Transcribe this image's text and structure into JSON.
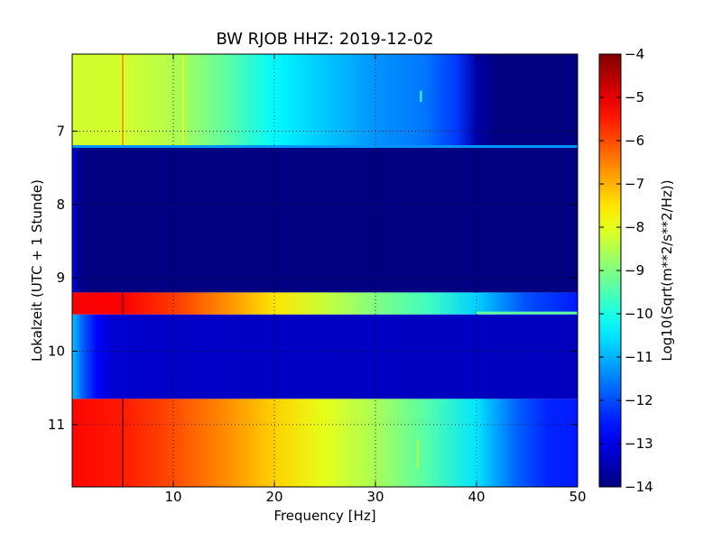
{
  "chart_data": {
    "type": "heatmap",
    "title": "BW RJOB HHZ: 2019-12-02",
    "xlabel": "Frequency [Hz]",
    "ylabel": "Lokalzeit (UTC + 1 Stunde)",
    "xlim": [
      0,
      50
    ],
    "ylim": [
      5.95,
      11.85
    ],
    "y_inverted": true,
    "x_ticks": [
      10,
      20,
      30,
      40,
      50
    ],
    "y_ticks": [
      7,
      8,
      9,
      10,
      11
    ],
    "grid": true,
    "colormap": "jet",
    "colorbar": {
      "label": "Log10(Sqrt(m**2/s**2/Hz))",
      "range": [
        -14,
        -4
      ],
      "ticks": [
        -4,
        -5,
        -6,
        -7,
        -8,
        -9,
        -10,
        -11,
        -12,
        -13,
        -14
      ]
    },
    "bands": [
      {
        "name": "band-1",
        "t_start": 5.95,
        "t_end": 7.2,
        "profile": [
          [
            0,
            -8.2
          ],
          [
            5,
            -8.2
          ],
          [
            10,
            -8.5
          ],
          [
            15,
            -9.3
          ],
          [
            20,
            -10.3
          ],
          [
            25,
            -10.8
          ],
          [
            30,
            -11.3
          ],
          [
            35,
            -11.6
          ],
          [
            38,
            -12.2
          ],
          [
            40,
            -13.6
          ],
          [
            42,
            -14
          ],
          [
            50,
            -14
          ]
        ]
      },
      {
        "name": "band-2",
        "t_start": 7.2,
        "t_end": 9.2,
        "profile": [
          [
            0,
            -12.8
          ],
          [
            0.6,
            -13.8
          ],
          [
            1.5,
            -14
          ],
          [
            50,
            -14
          ]
        ]
      },
      {
        "name": "band-3",
        "t_start": 9.2,
        "t_end": 9.5,
        "profile": [
          [
            0,
            -5.2
          ],
          [
            5,
            -5.2
          ],
          [
            10,
            -5.8
          ],
          [
            15,
            -6.6
          ],
          [
            20,
            -7.5
          ],
          [
            25,
            -8.3
          ],
          [
            30,
            -9.0
          ],
          [
            35,
            -9.6
          ],
          [
            40,
            -10.7
          ],
          [
            45,
            -12.0
          ],
          [
            50,
            -12.5
          ]
        ]
      },
      {
        "name": "band-4",
        "t_start": 9.5,
        "t_end": 10.65,
        "profile": [
          [
            0,
            -10.8
          ],
          [
            1,
            -11.8
          ],
          [
            2.5,
            -12.8
          ],
          [
            4,
            -13.2
          ],
          [
            10,
            -13.3
          ],
          [
            50,
            -13.4
          ]
        ]
      },
      {
        "name": "band-5",
        "t_start": 10.65,
        "t_end": 11.85,
        "profile": [
          [
            0,
            -5.3
          ],
          [
            5,
            -5.5
          ],
          [
            10,
            -6.0
          ],
          [
            15,
            -6.6
          ],
          [
            20,
            -7.3
          ],
          [
            25,
            -8.0
          ],
          [
            30,
            -8.6
          ],
          [
            35,
            -9.4
          ],
          [
            40,
            -10.5
          ],
          [
            44,
            -11.8
          ],
          [
            47,
            -12.4
          ],
          [
            50,
            -12.5
          ]
        ]
      }
    ],
    "spectral_lines": [
      {
        "freq": 5.0,
        "t_start": 5.95,
        "t_end": 7.2,
        "value": -6.8
      },
      {
        "freq": 5.0,
        "t_start": 9.2,
        "t_end": 9.5,
        "value": -4.2
      },
      {
        "freq": 5.0,
        "t_start": 10.65,
        "t_end": 11.85,
        "value": -4.0
      },
      {
        "freq": 11.0,
        "t_start": 5.95,
        "t_end": 7.2,
        "value": -8.0
      },
      {
        "freq": 34.2,
        "t_start": 11.2,
        "t_end": 11.6,
        "value": -8.5
      },
      {
        "freq": 34.5,
        "t_start": 6.45,
        "t_end": 6.6,
        "value": -9.5
      }
    ],
    "horizontal_lines": [
      {
        "t": 7.21,
        "f_start": 0,
        "f_end": 50,
        "value": -11.3
      },
      {
        "t": 9.48,
        "f_start": 40,
        "f_end": 50,
        "value": -9.3
      }
    ]
  }
}
